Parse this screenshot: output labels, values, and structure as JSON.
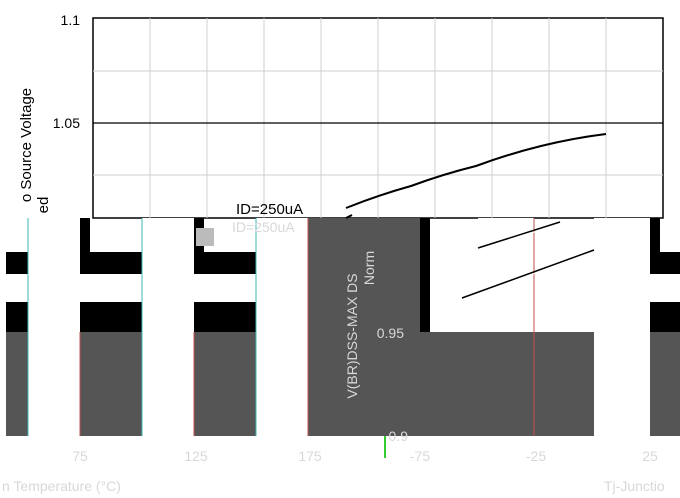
{
  "chart_data": {
    "type": "line",
    "title": "",
    "ylabel_lines": [
      "o Source Voltage",
      "ed"
    ],
    "xlabel_left": "n Temperature (°C)",
    "xlabel_right": "Tj-Junctio",
    "ylabel_glitch": "V(BR)DSS-MAX DS",
    "ylabel_glitch_small": "Norm",
    "annotation": "ID=250uA",
    "y_ticks_top": [
      "1.1",
      "1.05"
    ],
    "y_ticks_lower": [
      "0.95",
      "0.9"
    ],
    "x_ticks_left": [
      "75",
      "125",
      "175"
    ],
    "x_ticks_right": [
      "-75",
      "-25",
      "25"
    ],
    "ylim": [
      0.9,
      1.1
    ],
    "grid": true,
    "series": [
      {
        "x": [
          75,
          100,
          125,
          150,
          175
        ],
        "y": [
          1.005,
          1.016,
          1.026,
          1.036,
          1.042
        ]
      }
    ]
  }
}
